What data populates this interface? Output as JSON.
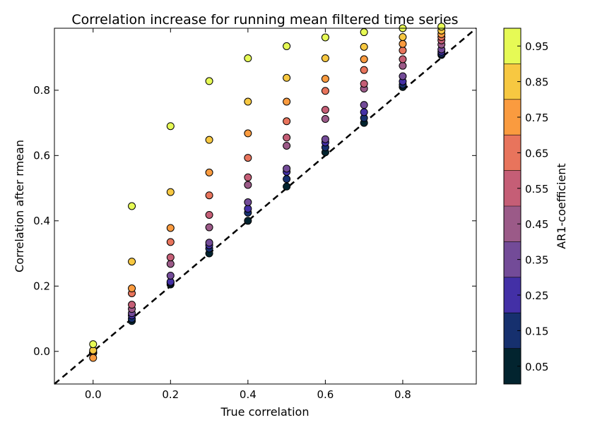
{
  "chart_data": {
    "type": "scatter",
    "title": "Correlation increase for running mean filtered time series",
    "xlabel": "True correlation",
    "ylabel": "Correlation after rmean",
    "xlim": [
      -0.1,
      0.99
    ],
    "ylim": [
      -0.1,
      0.99
    ],
    "x_ticks": [
      0.0,
      0.2,
      0.4,
      0.6,
      0.8
    ],
    "y_ticks": [
      0.0,
      0.2,
      0.4,
      0.6,
      0.8
    ],
    "reference_line": {
      "style": "dashed",
      "color": "#000000",
      "description": "y = x"
    },
    "grid": false,
    "ar1_levels": [
      0.05,
      0.15,
      0.25,
      0.35,
      0.45,
      0.55,
      0.65,
      0.75,
      0.85,
      0.95
    ],
    "series_x": [
      0.0,
      0.1,
      0.2,
      0.3,
      0.4,
      0.5,
      0.6,
      0.7,
      0.8,
      0.9
    ],
    "series_y": [
      [
        -0.005,
        0.093,
        0.205,
        0.3,
        0.4,
        0.505,
        0.61,
        0.7,
        0.81,
        0.908
      ],
      [
        -0.005,
        0.1,
        0.21,
        0.315,
        0.425,
        0.528,
        0.625,
        0.715,
        0.817,
        0.912
      ],
      [
        -0.005,
        0.11,
        0.213,
        0.325,
        0.437,
        0.55,
        0.64,
        0.733,
        0.827,
        0.918
      ],
      [
        -0.005,
        0.117,
        0.232,
        0.333,
        0.457,
        0.56,
        0.65,
        0.755,
        0.843,
        0.925
      ],
      [
        -0.005,
        0.13,
        0.268,
        0.38,
        0.51,
        0.63,
        0.712,
        0.805,
        0.875,
        0.94
      ],
      [
        -0.005,
        0.143,
        0.288,
        0.418,
        0.533,
        0.655,
        0.74,
        0.82,
        0.895,
        0.953
      ],
      [
        0.0,
        0.178,
        0.335,
        0.478,
        0.593,
        0.705,
        0.798,
        0.862,
        0.922,
        0.963
      ],
      [
        -0.02,
        0.193,
        0.378,
        0.548,
        0.668,
        0.765,
        0.835,
        0.895,
        0.942,
        0.972
      ],
      [
        0.003,
        0.275,
        0.488,
        0.648,
        0.765,
        0.838,
        0.898,
        0.933,
        0.963,
        0.983
      ],
      [
        0.022,
        0.445,
        0.69,
        0.828,
        0.898,
        0.935,
        0.962,
        0.978,
        0.99,
        0.995
      ]
    ],
    "colorbar": {
      "label": "AR1-coefficient",
      "tick_labels": [
        "0.05",
        "0.15",
        "0.25",
        "0.35",
        "0.45",
        "0.55",
        "0.65",
        "0.75",
        "0.85",
        "0.95"
      ],
      "colors": [
        "#02242f",
        "#16306e",
        "#4330a6",
        "#734b98",
        "#9b5a88",
        "#c55e76",
        "#e8745c",
        "#fa9b3f",
        "#f7c841",
        "#e6fa55"
      ]
    }
  }
}
